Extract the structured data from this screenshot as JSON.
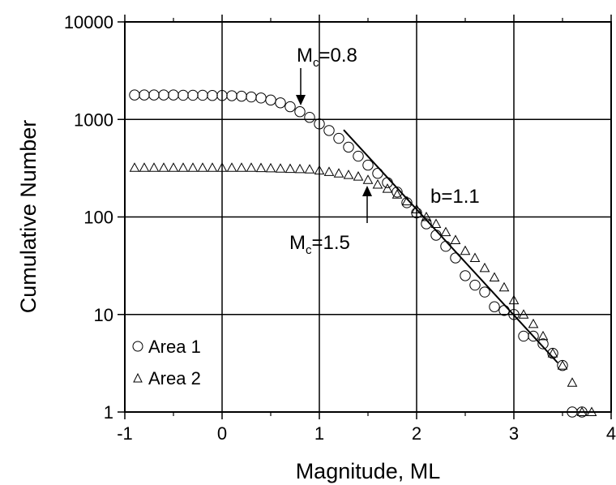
{
  "chart_data": {
    "type": "scatter",
    "title": "",
    "xlabel": "Magnitude, ML",
    "ylabel": "Cumulative Number",
    "xlim": [
      -1,
      4
    ],
    "ylim": [
      1,
      10000
    ],
    "y_scale": "log",
    "grid": true,
    "legend_position": "bottom-left",
    "x_ticks": [
      "-1",
      "0",
      "1",
      "2",
      "3",
      "4"
    ],
    "y_ticks": [
      "1",
      "10",
      "100",
      "1000",
      "10000"
    ],
    "series": [
      {
        "name": "Area 1",
        "marker": "circle",
        "x": [
          -0.9,
          -0.8,
          -0.7,
          -0.6,
          -0.5,
          -0.4,
          -0.3,
          -0.2,
          -0.1,
          0.0,
          0.1,
          0.2,
          0.3,
          0.4,
          0.5,
          0.6,
          0.7,
          0.8,
          0.9,
          1.0,
          1.1,
          1.2,
          1.3,
          1.4,
          1.5,
          1.6,
          1.7,
          1.8,
          1.9,
          2.0,
          2.1,
          2.2,
          2.3,
          2.4,
          2.5,
          2.6,
          2.7,
          2.8,
          2.9,
          3.0,
          3.1,
          3.2,
          3.3,
          3.4,
          3.5,
          3.6,
          3.7
        ],
        "y": [
          1780,
          1780,
          1780,
          1780,
          1780,
          1770,
          1770,
          1770,
          1760,
          1760,
          1750,
          1730,
          1700,
          1660,
          1580,
          1480,
          1350,
          1200,
          1050,
          900,
          770,
          640,
          520,
          420,
          340,
          280,
          225,
          180,
          140,
          110,
          85,
          65,
          50,
          38,
          25,
          20,
          17,
          12,
          11,
          10,
          6,
          6,
          5,
          4,
          3,
          1,
          1
        ]
      },
      {
        "name": "Area 2",
        "marker": "triangle",
        "x": [
          -0.9,
          -0.8,
          -0.7,
          -0.6,
          -0.5,
          -0.4,
          -0.3,
          -0.2,
          -0.1,
          0.0,
          0.1,
          0.2,
          0.3,
          0.4,
          0.5,
          0.6,
          0.7,
          0.8,
          0.9,
          1.0,
          1.1,
          1.2,
          1.3,
          1.4,
          1.5,
          1.6,
          1.7,
          1.8,
          1.9,
          2.0,
          2.1,
          2.2,
          2.3,
          2.4,
          2.5,
          2.6,
          2.7,
          2.8,
          2.9,
          3.0,
          3.1,
          3.2,
          3.3,
          3.4,
          3.5,
          3.6,
          3.7,
          3.8
        ],
        "y": [
          320,
          320,
          320,
          320,
          320,
          320,
          320,
          320,
          320,
          320,
          320,
          320,
          320,
          318,
          316,
          314,
          312,
          310,
          308,
          300,
          290,
          280,
          270,
          260,
          240,
          215,
          195,
          170,
          145,
          120,
          100,
          85,
          70,
          58,
          45,
          38,
          30,
          24,
          19,
          14,
          10,
          8,
          6,
          4,
          3,
          2,
          1,
          1
        ]
      },
      {
        "name": "",
        "type": "line",
        "x": [
          1.25,
          3.45
        ],
        "y": [
          780,
          3.2
        ]
      }
    ],
    "annotations": [
      {
        "label": "M",
        "subscript": "c",
        "suffix": "=0.8",
        "x": 0.8,
        "arrow_to_y": 1000,
        "direction": "down"
      },
      {
        "label": "M",
        "subscript": "c",
        "suffix": "=1.5",
        "x": 1.5,
        "arrow_to_y": 230,
        "direction": "up"
      },
      {
        "text": "b=1.1"
      }
    ]
  }
}
